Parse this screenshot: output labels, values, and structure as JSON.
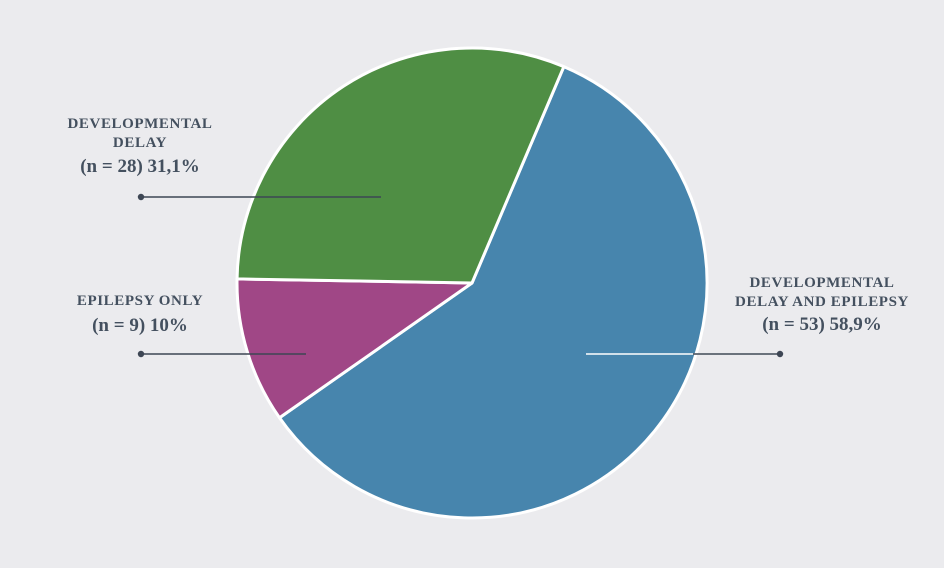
{
  "chart_data": {
    "type": "pie",
    "slices": [
      {
        "label_lines": [
          "DEVELOPMENTAL",
          "DELAY AND EPILEPSY"
        ],
        "value_text": "(n = 53) 58,9%",
        "n": 53,
        "percent": 58.9,
        "color": "#4785ad"
      },
      {
        "label_lines": [
          "EPILEPSY ONLY"
        ],
        "value_text": "(n = 9) 10%",
        "n": 9,
        "percent": 10.0,
        "color": "#a04786"
      },
      {
        "label_lines": [
          "DEVELOPMENTAL",
          "DELAY"
        ],
        "value_text": "(n = 28) 31,1%",
        "n": 28,
        "percent": 31.1,
        "color": "#4f8e44"
      }
    ]
  }
}
